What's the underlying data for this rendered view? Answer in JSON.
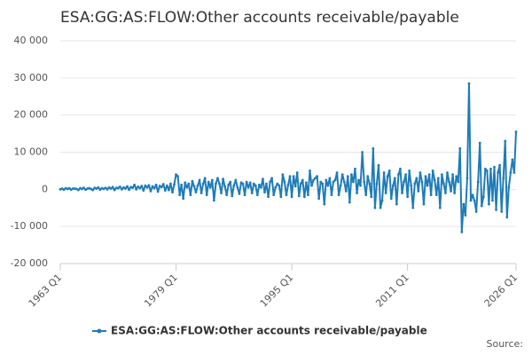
{
  "chart_data": {
    "type": "line",
    "title": "ESA:GG:AS:FLOW:Other accounts receivable/payable",
    "source": "Source:",
    "categories": [
      "1963 Q1",
      null,
      null,
      null,
      null,
      null,
      null,
      null,
      null,
      null,
      null,
      null,
      null,
      null,
      null,
      null,
      null,
      null,
      null,
      null,
      null,
      null,
      null,
      null,
      null,
      null,
      null,
      null,
      null,
      null,
      null,
      null,
      null,
      null,
      null,
      null,
      null,
      null,
      null,
      null,
      null,
      null,
      null,
      null,
      null,
      null,
      null,
      null,
      null,
      null,
      null,
      null,
      null,
      null,
      null,
      null,
      null,
      null,
      null,
      null,
      null,
      null,
      null,
      null,
      "1979 Q1",
      null,
      null,
      null,
      null,
      null,
      null,
      null,
      null,
      null,
      null,
      null,
      null,
      null,
      null,
      null,
      null,
      null,
      null,
      null,
      null,
      null,
      null,
      null,
      null,
      null,
      null,
      null,
      null,
      null,
      null,
      null,
      null,
      null,
      null,
      null,
      null,
      null,
      null,
      null,
      null,
      null,
      null,
      null,
      null,
      null,
      null,
      null,
      null,
      null,
      null,
      null,
      null,
      null,
      null,
      null,
      null,
      null,
      null,
      null,
      null,
      null,
      null,
      null,
      "1995 Q1",
      null,
      null,
      null,
      null,
      null,
      null,
      null,
      null,
      null,
      null,
      null,
      null,
      null,
      null,
      null,
      null,
      null,
      null,
      null,
      null,
      null,
      null,
      null,
      null,
      null,
      null,
      null,
      null,
      null,
      null,
      null,
      null,
      null,
      null,
      null,
      null,
      null,
      null,
      null,
      null,
      null,
      null,
      null,
      null,
      null,
      null,
      null,
      null,
      null,
      null,
      null,
      null,
      null,
      null,
      null,
      null,
      null,
      null,
      null,
      null,
      null,
      null,
      null,
      "2011 Q1",
      null,
      null,
      null,
      null,
      null,
      null,
      null,
      null,
      null,
      null,
      null,
      null,
      null,
      null,
      null,
      null,
      null,
      null,
      null,
      null,
      null,
      null,
      null,
      null,
      null,
      null,
      null,
      null,
      null,
      null,
      null,
      null,
      null,
      null,
      null,
      null,
      null,
      null,
      null,
      null,
      null,
      null,
      null,
      null,
      null,
      null,
      null,
      null,
      null,
      null,
      null,
      null,
      null,
      null,
      null,
      null,
      null,
      null,
      null,
      "2026 Q1"
    ],
    "series": [
      {
        "name": "ESA:GG:AS:FLOW:Other accounts receivable/payable",
        "color": "#1f7cb8",
        "values": [
          0,
          200,
          -100,
          300,
          100,
          300,
          -100,
          200,
          200,
          100,
          -200,
          300,
          100,
          400,
          -100,
          200,
          300,
          100,
          -200,
          400,
          200,
          500,
          -100,
          300,
          100,
          400,
          0,
          500,
          200,
          600,
          -200,
          400,
          300,
          700,
          0,
          500,
          200,
          800,
          -100,
          600,
          400,
          1200,
          0,
          700,
          300,
          900,
          -300,
          1000,
          500,
          1100,
          -500,
          800,
          300,
          1200,
          -600,
          900,
          600,
          1400,
          -300,
          1000,
          -200,
          1500,
          -800,
          1300,
          4000,
          3500,
          -1500,
          1200,
          -2500,
          1800,
          500,
          1500,
          -1500,
          2200,
          800,
          -800,
          1000,
          2500,
          -1000,
          1500,
          3000,
          -1500,
          2000,
          500,
          2500,
          -3000,
          1500,
          3000,
          1500,
          -1000,
          2800,
          800,
          -1500,
          1200,
          2000,
          -1800,
          1000,
          2500,
          500,
          -1200,
          1800,
          1500,
          -1500,
          2000,
          500,
          1800,
          -1000,
          1500,
          1000,
          -1500,
          1200,
          500,
          2800,
          -800,
          1500,
          -2000,
          2000,
          3000,
          -1500,
          500,
          1500,
          1000,
          -2000,
          4000,
          2000,
          -1500,
          1200,
          3500,
          -2000,
          3500,
          800,
          4500,
          -1800,
          1500,
          2500,
          -2000,
          1800,
          -1500,
          5000,
          1000,
          2500,
          3000,
          3500,
          -2500,
          2000,
          1500,
          -4000,
          2500,
          1000,
          3000,
          -1500,
          2000,
          2500,
          4500,
          -1500,
          1000,
          4000,
          2000,
          -500,
          3500,
          -3500,
          4000,
          2000,
          5500,
          -1000,
          2500,
          1000,
          10000,
          2000,
          -1500,
          3500,
          1500,
          -2000,
          11000,
          -5000,
          1500,
          6500,
          -5000,
          -3000,
          4500,
          -1000,
          3500,
          5000,
          -2500,
          1000,
          3000,
          -4000,
          4000,
          5500,
          -1000,
          2000,
          4000,
          -2000,
          5000,
          1000,
          -5000,
          1500,
          3000,
          -500,
          4500,
          2000,
          -4000,
          3500,
          1000,
          4000,
          -1500,
          5000,
          2500,
          -1500,
          3000,
          -5000,
          4000,
          1500,
          -1000,
          4500,
          2000,
          -500,
          4000,
          -1000,
          3500,
          2000,
          11000,
          -11500,
          -4000,
          -7000,
          3000,
          28500,
          -3000,
          -1500,
          -3000,
          -6000,
          2000,
          12500,
          -4500,
          -2000,
          5500,
          5000,
          -4000,
          5500,
          -3000,
          6000,
          -5500,
          4500,
          6500,
          -6000,
          3000,
          13000,
          -7500,
          500,
          4500,
          8000,
          4500,
          15500
        ]
      }
    ],
    "ylim": [
      -20000,
      40000
    ],
    "yticks": [
      {
        "value": -20000,
        "label": "-20 000"
      },
      {
        "value": -10000,
        "label": "-10 000"
      },
      {
        "value": 0,
        "label": "0"
      },
      {
        "value": 10000,
        "label": "10 000"
      },
      {
        "value": 20000,
        "label": "20 000"
      },
      {
        "value": 30000,
        "label": "30 000"
      },
      {
        "value": 40000,
        "label": "40 000"
      }
    ],
    "grid": true
  }
}
